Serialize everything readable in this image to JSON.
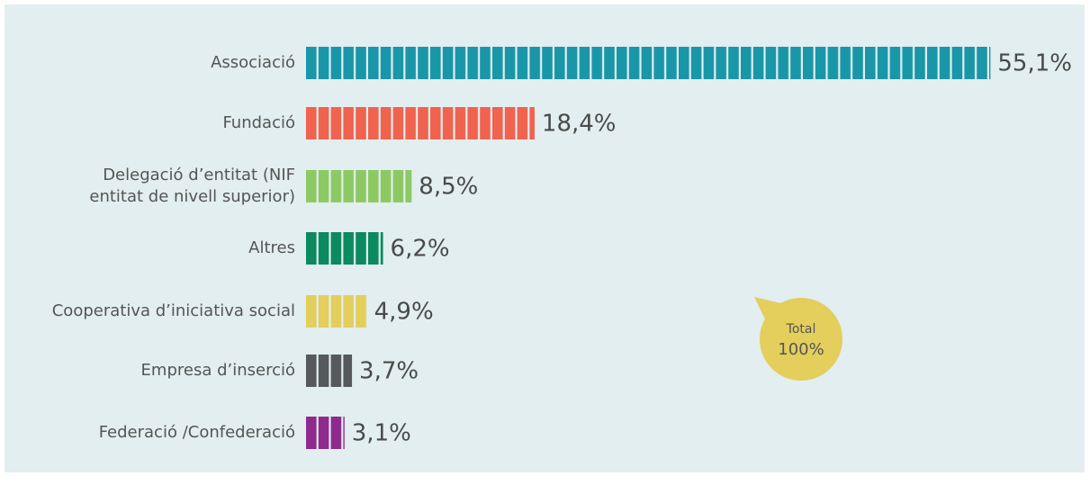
{
  "chart_data": {
    "type": "bar",
    "categories": [
      "Associació",
      "Fundació",
      [
        "Delegació d’entitat (NIF",
        "entitat de nivell superior)"
      ],
      "Altres",
      "Cooperativa d’iniciativa social",
      "Empresa d’inserció",
      "Federació /Confederació"
    ],
    "values": [
      55.1,
      18.4,
      8.5,
      6.2,
      4.9,
      3.7,
      3.1
    ],
    "value_labels": [
      "55,1%",
      "18,4%",
      "8,5%",
      "6,2%",
      "4,9%",
      "3,7%",
      "3,1%"
    ],
    "colors": [
      "#1a96a9",
      "#f0634e",
      "#8dc963",
      "#0b8a5f",
      "#e4ce5c",
      "#55595b",
      "#8e2a8d"
    ],
    "total": {
      "label": "Total",
      "value": 100,
      "value_label": "100%"
    }
  }
}
